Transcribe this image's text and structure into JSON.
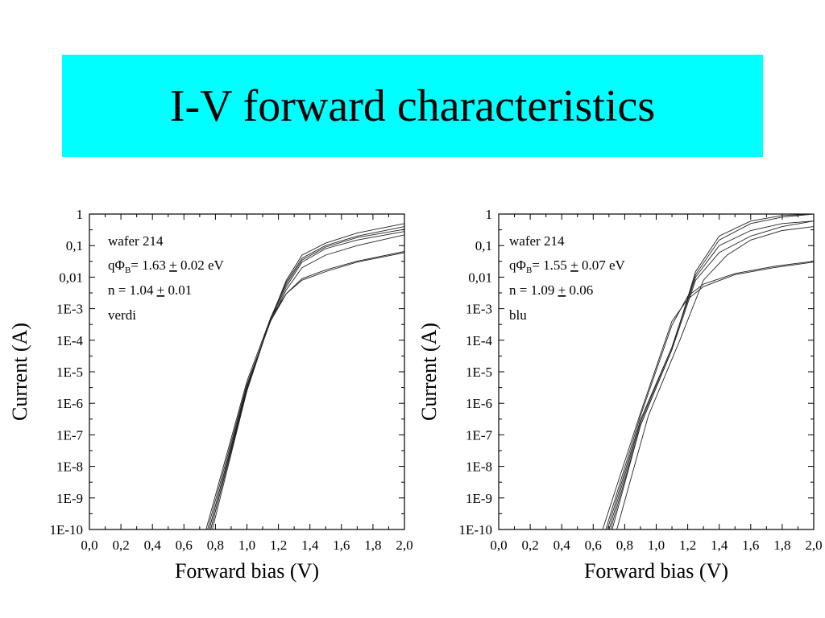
{
  "colors": {
    "banner": "#00ffff",
    "curve": "#222222",
    "accent_label": "#ff0000"
  },
  "slide": {
    "title": "I-V forward characteristics"
  },
  "chart_data": [
    {
      "type": "line",
      "scale_y": "log",
      "xlabel": "Forward bias (V)",
      "ylabel": "Current (A)",
      "xlim": [
        0,
        2
      ],
      "ylim": [
        1e-10,
        1
      ],
      "x_ticks": [
        "0,0",
        "0,2",
        "0,4",
        "0,6",
        "0,8",
        "1,0",
        "1,2",
        "1,4",
        "1,6",
        "1,8",
        "2,0"
      ],
      "y_ticks": [
        "1E-10",
        "1E-9",
        "1E-8",
        "1E-7",
        "1E-6",
        "1E-5",
        "1E-4",
        "1E-3",
        "0,01",
        "0,1",
        "1"
      ],
      "annotation": {
        "line1": "wafer 214",
        "phi_prefix": "qΦ",
        "phi_sub": "B",
        "phi_value": "= 1.63 ",
        "pm1": "+",
        "phi_err": " 0.02 eV",
        "n_value": "n = 1.04 ",
        "pm2": "+",
        "n_err": " 0.01",
        "label": "verdi"
      },
      "series": [
        {
          "x": [
            0.74,
            1.0,
            1.15,
            1.25,
            1.35,
            1.5,
            1.7,
            2.0
          ],
          "y": [
            1e-10,
            5e-06,
            0.0005,
            0.003,
            0.008,
            0.015,
            0.03,
            0.06
          ]
        },
        {
          "x": [
            0.75,
            1.0,
            1.15,
            1.25,
            1.35,
            1.5,
            1.7,
            2.0
          ],
          "y": [
            1e-10,
            4e-06,
            0.0004,
            0.003,
            0.009,
            0.017,
            0.032,
            0.065
          ]
        },
        {
          "x": [
            0.76,
            1.0,
            1.15,
            1.25,
            1.35,
            1.5,
            1.7,
            2.0
          ],
          "y": [
            1e-10,
            3.5e-06,
            0.0004,
            0.004,
            0.02,
            0.05,
            0.1,
            0.22
          ]
        },
        {
          "x": [
            0.76,
            1.0,
            1.15,
            1.25,
            1.35,
            1.5,
            1.7,
            2.0
          ],
          "y": [
            1e-10,
            3e-06,
            0.00045,
            0.005,
            0.03,
            0.08,
            0.15,
            0.28
          ]
        },
        {
          "x": [
            0.77,
            1.0,
            1.15,
            1.25,
            1.35,
            1.5,
            1.7,
            2.0
          ],
          "y": [
            1e-10,
            3e-06,
            0.0005,
            0.006,
            0.035,
            0.09,
            0.18,
            0.33
          ]
        },
        {
          "x": [
            0.77,
            1.0,
            1.15,
            1.25,
            1.35,
            1.5,
            1.7,
            2.0
          ],
          "y": [
            1e-10,
            2.5e-06,
            0.0005,
            0.007,
            0.04,
            0.1,
            0.2,
            0.4
          ]
        },
        {
          "x": [
            0.78,
            1.0,
            1.15,
            1.25,
            1.35,
            1.5,
            1.7,
            2.0
          ],
          "y": [
            1e-10,
            2.5e-06,
            0.00045,
            0.008,
            0.05,
            0.12,
            0.25,
            0.5
          ]
        }
      ]
    },
    {
      "type": "line",
      "scale_y": "log",
      "xlabel": "Forward bias (V)",
      "ylabel": "Current (A)",
      "xlim": [
        0,
        2
      ],
      "ylim": [
        1e-10,
        1
      ],
      "x_ticks": [
        "0,0",
        "0,2",
        "0,4",
        "0,6",
        "0,8",
        "1,0",
        "1,2",
        "1,4",
        "1,6",
        "1,8",
        "2,0"
      ],
      "y_ticks": [
        "1E-10",
        "1E-9",
        "1E-8",
        "1E-7",
        "1E-6",
        "1E-5",
        "1E-4",
        "1E-3",
        "0,01",
        "0,1",
        "1"
      ],
      "annotation": {
        "line1": "wafer 214",
        "phi_prefix": "qΦ",
        "phi_sub": "B",
        "phi_value": "= 1.55 ",
        "pm1": "+",
        "phi_err": " 0.07 eV",
        "n_value": "n = 1.09 ",
        "pm2": "+",
        "n_err": " 0.06",
        "label": "blu"
      },
      "series": [
        {
          "x": [
            0.66,
            0.9,
            1.1,
            1.2,
            1.3,
            1.5,
            1.75,
            2.0
          ],
          "y": [
            1e-10,
            5e-07,
            0.0004,
            0.002,
            0.005,
            0.012,
            0.02,
            0.03
          ]
        },
        {
          "x": [
            0.68,
            0.9,
            1.1,
            1.2,
            1.3,
            1.5,
            1.75,
            2.0
          ],
          "y": [
            1e-10,
            4e-07,
            0.0003,
            0.0025,
            0.006,
            0.013,
            0.022,
            0.032
          ]
        },
        {
          "x": [
            0.69,
            0.9,
            1.1,
            1.25,
            1.4,
            1.6,
            1.8,
            2.0
          ],
          "y": [
            1e-10,
            3e-07,
            6e-05,
            0.01,
            0.1,
            0.3,
            0.5,
            0.6
          ]
        },
        {
          "x": [
            0.7,
            0.9,
            1.1,
            1.25,
            1.4,
            1.6,
            1.8,
            2.0
          ],
          "y": [
            1e-10,
            2.5e-07,
            6e-05,
            0.012,
            0.15,
            0.5,
            0.8,
            1.0
          ]
        },
        {
          "x": [
            0.71,
            0.9,
            1.1,
            1.25,
            1.4,
            1.6,
            1.8,
            2.0
          ],
          "y": [
            1e-10,
            2e-07,
            5e-05,
            0.015,
            0.2,
            0.6,
            0.9,
            1.0
          ]
        },
        {
          "x": [
            0.72,
            0.9,
            1.1,
            1.25,
            1.4,
            1.6,
            1.8,
            2.0
          ],
          "y": [
            1e-10,
            2e-07,
            5e-05,
            0.008,
            0.06,
            0.2,
            0.4,
            0.6
          ]
        },
        {
          "x": [
            0.75,
            0.95,
            1.15,
            1.3,
            1.45,
            1.6,
            1.8,
            2.0
          ],
          "y": [
            1e-10,
            4e-07,
            0.0001,
            0.008,
            0.05,
            0.15,
            0.3,
            0.4
          ]
        }
      ]
    }
  ]
}
